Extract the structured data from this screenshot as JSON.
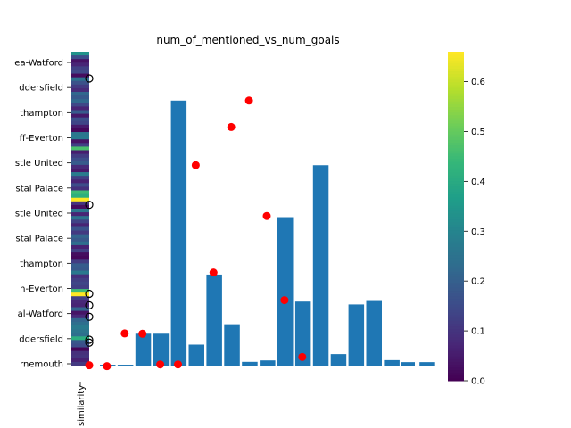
{
  "chart_data": {
    "type": "bar",
    "title": "num_of_mentioned_vs_num_goals",
    "xlabel": "similarity",
    "ylabel": "",
    "heatmap": {
      "ytick_labels": [
        "ea-Watford",
        "ddersfield",
        "thampton",
        "ff-Everton",
        "stle United",
        "stal Palace",
        "stle United",
        "stal Palace",
        "thampton",
        "h-Everton",
        "al-Watford",
        "ddersfield",
        "rnemouth"
      ],
      "xtick_label": "similarity",
      "rows": 86,
      "colorbar": {
        "min": 0.0,
        "max": 0.66,
        "ticks": [
          "0.0",
          "0.1",
          "0.2",
          "0.3",
          "0.4",
          "0.5",
          "0.6"
        ],
        "colormap": "viridis"
      }
    },
    "bars": {
      "color": "#1f77b4",
      "values": [
        0.3,
        0.3,
        11.1,
        11.1,
        92.3,
        7.3,
        31.7,
        14.4,
        1.3,
        1.8,
        51.7,
        22.3,
        69.8,
        4.0,
        21.3,
        22.5,
        1.9,
        0,
        1.2
      ],
      "ylim": [
        0,
        100
      ]
    },
    "red_points": {
      "color": "#ff0000",
      "values": [
        0.1,
        -0.2,
        11.2,
        11.1,
        0.4,
        0.4,
        69.8,
        32.4,
        83.1,
        92.3,
        52.1,
        22.8,
        3.0
      ]
    },
    "outline_points": {
      "color": "#000000",
      "values": [
        100,
        56,
        25,
        21,
        17,
        9,
        8
      ]
    }
  }
}
